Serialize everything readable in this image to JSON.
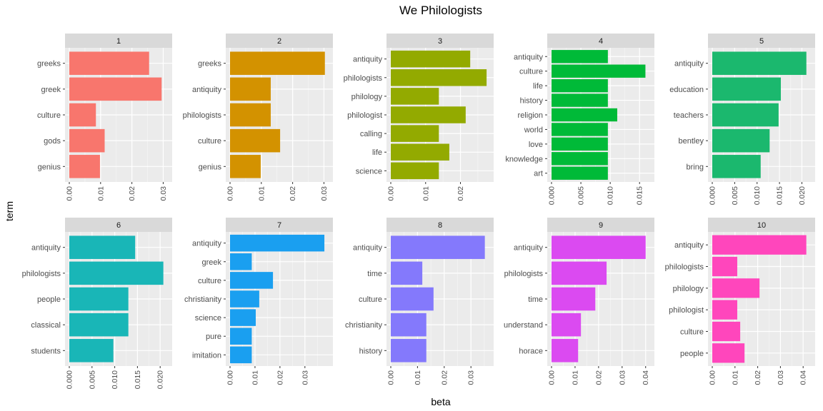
{
  "chart_data": {
    "type": "bar",
    "orientation": "horizontal",
    "title": "We Philologists",
    "xlabel": "beta",
    "ylabel": "term",
    "grid": true,
    "legend": "none",
    "panels": [
      {
        "label": "1",
        "color": "#F8766D",
        "xlim": [
          0,
          0.0315
        ],
        "ticks": [
          0,
          0.01,
          0.02,
          0.03
        ],
        "tick_labels": [
          "0.00",
          "0.01",
          "0.02",
          "0.03"
        ],
        "categories": [
          "greeks",
          "greek",
          "culture",
          "gods",
          "genius"
        ],
        "values": [
          0.0255,
          0.0295,
          0.0085,
          0.0113,
          0.0098
        ]
      },
      {
        "label": "2",
        "color": "#D39200",
        "xlim": [
          0,
          0.0315
        ],
        "ticks": [
          0,
          0.01,
          0.02,
          0.03
        ],
        "tick_labels": [
          "0.00",
          "0.01",
          "0.02",
          "0.03"
        ],
        "categories": [
          "greeks",
          "antiquity",
          "philologists",
          "culture",
          "genius"
        ],
        "values": [
          0.0303,
          0.013,
          0.013,
          0.016,
          0.0098
        ]
      },
      {
        "label": "3",
        "color": "#93AA00",
        "xlim": [
          0,
          0.0283
        ],
        "ticks": [
          0,
          0.01,
          0.02
        ],
        "tick_labels": [
          "0.00",
          "0.01",
          "0.02"
        ],
        "categories": [
          "antiquity",
          "philologists",
          "philology",
          "philologist",
          "calling",
          "life",
          "science"
        ],
        "values": [
          0.0228,
          0.0275,
          0.0138,
          0.0215,
          0.0138,
          0.0168,
          0.0138
        ]
      },
      {
        "label": "4",
        "color": "#00BA38",
        "xlim": [
          0,
          0.0168
        ],
        "ticks": [
          0,
          0.005,
          0.01,
          0.015
        ],
        "tick_labels": [
          "0.000",
          "0.005",
          "0.010",
          "0.015"
        ],
        "categories": [
          "antiquity",
          "culture",
          "life",
          "history",
          "religion",
          "world",
          "love",
          "knowledge",
          "art"
        ],
        "values": [
          0.0096,
          0.016,
          0.0096,
          0.0096,
          0.0112,
          0.0096,
          0.0096,
          0.0096,
          0.0096
        ]
      },
      {
        "label": "5",
        "color": "#1BB86E",
        "xlim": [
          0,
          0.022
        ],
        "ticks": [
          0,
          0.005,
          0.01,
          0.015,
          0.02
        ],
        "tick_labels": [
          "0.000",
          "0.005",
          "0.010",
          "0.015",
          "0.020"
        ],
        "categories": [
          "antiquity",
          "education",
          "teachers",
          "bentley",
          "bring"
        ],
        "values": [
          0.021,
          0.0153,
          0.0148,
          0.0128,
          0.0108
        ]
      },
      {
        "label": "6",
        "color": "#19B6B7",
        "xlim": [
          0,
          0.0217
        ],
        "ticks": [
          0,
          0.005,
          0.01,
          0.015,
          0.02
        ],
        "tick_labels": [
          "0.000",
          "0.005",
          "0.010",
          "0.015",
          "0.020"
        ],
        "categories": [
          "antiquity",
          "philologists",
          "people",
          "classical",
          "students"
        ],
        "values": [
          0.0145,
          0.0207,
          0.013,
          0.013,
          0.0097
        ]
      },
      {
        "label": "7",
        "color": "#1A9FF0",
        "xlim": [
          0,
          0.0395
        ],
        "ticks": [
          0,
          0.01,
          0.02,
          0.03
        ],
        "tick_labels": [
          "0.00",
          "0.01",
          "0.02",
          "0.03"
        ],
        "categories": [
          "antiquity",
          "greek",
          "culture",
          "christianity",
          "science",
          "pure",
          "imitation"
        ],
        "values": [
          0.0378,
          0.0087,
          0.0172,
          0.0117,
          0.0103,
          0.0087,
          0.0087
        ]
      },
      {
        "label": "8",
        "color": "#8479FC",
        "xlim": [
          0,
          0.0369
        ],
        "ticks": [
          0,
          0.01,
          0.02,
          0.03
        ],
        "tick_labels": [
          "0.00",
          "0.01",
          "0.02",
          "0.03"
        ],
        "categories": [
          "antiquity",
          "time",
          "culture",
          "christianity",
          "history"
        ],
        "values": [
          0.0352,
          0.0118,
          0.016,
          0.0133,
          0.0133
        ]
      },
      {
        "label": "9",
        "color": "#DB4AF1",
        "xlim": [
          0,
          0.0419
        ],
        "ticks": [
          0,
          0.01,
          0.02,
          0.03,
          0.04
        ],
        "tick_labels": [
          "0.00",
          "0.01",
          "0.02",
          "0.03",
          "0.04"
        ],
        "categories": [
          "antiquity",
          "philologists",
          "time",
          "understand",
          "horace"
        ],
        "values": [
          0.04,
          0.0234,
          0.0186,
          0.0125,
          0.0113
        ]
      },
      {
        "label": "10",
        "color": "#FF46BC",
        "xlim": [
          0,
          0.0434
        ],
        "ticks": [
          0,
          0.01,
          0.02,
          0.03,
          0.04
        ],
        "tick_labels": [
          "0.00",
          "0.01",
          "0.02",
          "0.03",
          "0.04"
        ],
        "categories": [
          "antiquity",
          "philologists",
          "philology",
          "philologist",
          "culture",
          "people"
        ],
        "values": [
          0.0414,
          0.011,
          0.0208,
          0.011,
          0.0123,
          0.0142
        ]
      }
    ]
  }
}
